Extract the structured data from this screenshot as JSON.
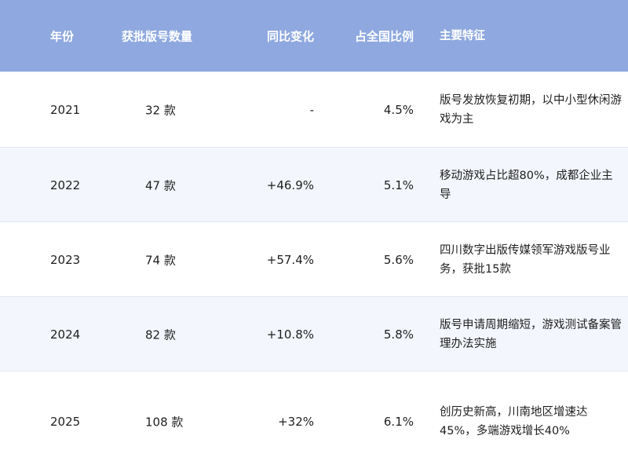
{
  "header": {
    "year": "年份",
    "count": "获批版号数量",
    "yoy": "同比变化",
    "share": "占全国比例",
    "features": "主要特征"
  },
  "colors": {
    "header_bg": "#8fa8df",
    "alt_row_bg": "#f3f6fc"
  },
  "rows": [
    {
      "year": "2021",
      "count": "32 款",
      "yoy": "-",
      "share": "4.5%",
      "features": "版号发放恢复初期，以中小型休闲游戏为主"
    },
    {
      "year": "2022",
      "count": "47 款",
      "yoy": "+46.9%",
      "share": "5.1%",
      "features": "移动游戏占比超80%，成都企业主导"
    },
    {
      "year": "2023",
      "count": "74 款",
      "yoy": "+57.4%",
      "share": "5.6%",
      "features": "四川数字出版传媒领军游戏版号业务，获批15款"
    },
    {
      "year": "2024",
      "count": "82 款",
      "yoy": "+10.8%",
      "share": "5.8%",
      "features": "版号申请周期缩短，游戏测试备案管理办法实施"
    },
    {
      "year": "2025",
      "count": "108 款",
      "yoy": "+32%",
      "share": "6.1%",
      "features": "创历史新高，川南地区增速达45%，多端游戏增长40%"
    }
  ]
}
